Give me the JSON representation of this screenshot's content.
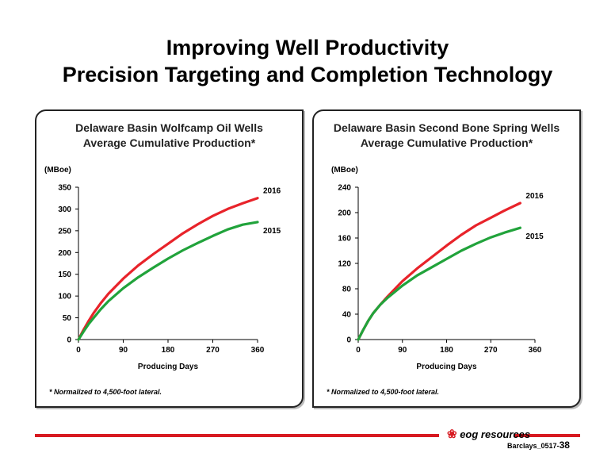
{
  "title_line1": "Improving Well Productivity",
  "title_line2": "Precision Targeting and Completion Technology",
  "footer": {
    "logo_text": "eog resources",
    "slide_ref": "Barclays_0517-",
    "page_number": "38",
    "accent_color": "#d71920"
  },
  "chart_data": [
    {
      "type": "line",
      "title_line1": "Delaware Basin Wolfcamp Oil Wells",
      "title_line2": "Average Cumulative Production*",
      "ylabel": "(MBoe)",
      "xlabel": "Producing Days",
      "footnote": "* Normalized to 4,500-foot lateral.",
      "xlim": [
        0,
        360
      ],
      "ylim": [
        0,
        350
      ],
      "xticks": [
        0,
        90,
        180,
        270,
        360
      ],
      "yticks": [
        0,
        50,
        100,
        150,
        200,
        250,
        300,
        350
      ],
      "grid": false,
      "series": [
        {
          "name": "2016",
          "color": "#e8232a",
          "x": [
            0,
            10,
            20,
            30,
            45,
            60,
            90,
            120,
            150,
            180,
            210,
            240,
            270,
            300,
            330,
            360
          ],
          "y": [
            0,
            22,
            42,
            60,
            84,
            105,
            140,
            170,
            196,
            220,
            244,
            265,
            284,
            300,
            313,
            325
          ]
        },
        {
          "name": "2015",
          "color": "#21a33b",
          "x": [
            0,
            10,
            20,
            30,
            45,
            60,
            90,
            120,
            150,
            180,
            210,
            240,
            270,
            300,
            330,
            360
          ],
          "y": [
            0,
            18,
            35,
            49,
            70,
            88,
            118,
            143,
            165,
            186,
            205,
            222,
            238,
            253,
            264,
            270
          ]
        }
      ]
    },
    {
      "type": "line",
      "title_line1": "Delaware Basin Second Bone Spring Wells",
      "title_line2": "Average Cumulative Production*",
      "ylabel": "(MBoe)",
      "xlabel": "Producing Days",
      "footnote": "* Normalized to 4,500-foot lateral.",
      "xlim": [
        0,
        360
      ],
      "ylim": [
        0,
        240
      ],
      "xticks": [
        0,
        90,
        180,
        270,
        360
      ],
      "yticks": [
        0,
        40,
        80,
        120,
        160,
        200,
        240
      ],
      "grid": false,
      "series": [
        {
          "name": "2016",
          "color": "#e8232a",
          "x": [
            0,
            10,
            20,
            30,
            45,
            60,
            90,
            120,
            150,
            180,
            210,
            240,
            270,
            300,
            330
          ],
          "y": [
            0,
            15,
            29,
            41,
            55,
            68,
            92,
            112,
            130,
            148,
            165,
            180,
            192,
            204,
            215
          ]
        },
        {
          "name": "2015",
          "color": "#21a33b",
          "x": [
            0,
            10,
            20,
            30,
            45,
            60,
            90,
            120,
            150,
            180,
            210,
            240,
            270,
            300,
            330
          ],
          "y": [
            0,
            15,
            29,
            41,
            55,
            66,
            85,
            101,
            114,
            127,
            140,
            151,
            161,
            169,
            176
          ]
        }
      ]
    }
  ]
}
